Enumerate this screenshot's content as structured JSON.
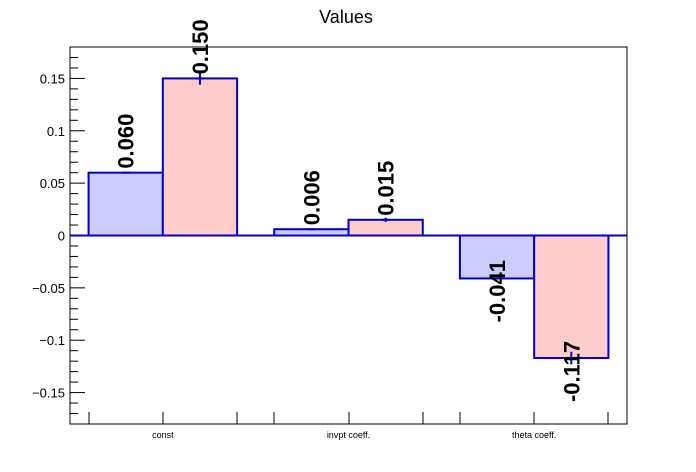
{
  "chart_data": {
    "type": "bar",
    "title": "Values",
    "categories": [
      "const",
      "invpt coeff.",
      "theta coeff."
    ],
    "series": [
      {
        "values": [
          0.06,
          0.006,
          -0.041
        ],
        "errors": [
          0.0,
          0.0,
          0.0
        ],
        "labels": [
          "0.060",
          "0.006",
          "-0.041"
        ],
        "fill": "#ccccff",
        "stroke": "#0000cc"
      },
      {
        "values": [
          0.15,
          0.015,
          -0.117
        ],
        "errors": [
          0.006,
          0.002,
          0.006
        ],
        "labels": [
          "0.150",
          "0.015",
          "-0.117"
        ],
        "fill": "#ffcccc",
        "stroke": "#0000cc"
      }
    ],
    "ylim": [
      -0.18,
      0.18
    ],
    "yticks": [
      -0.15,
      -0.1,
      -0.05,
      0,
      0.05,
      0.1,
      0.15
    ],
    "ytick_labels": [
      "−0.15",
      "−0.1",
      "−0.05",
      "0",
      "0.05",
      "0.1",
      "0.15"
    ],
    "grid": false,
    "zero_line_color": "#0000cc"
  }
}
